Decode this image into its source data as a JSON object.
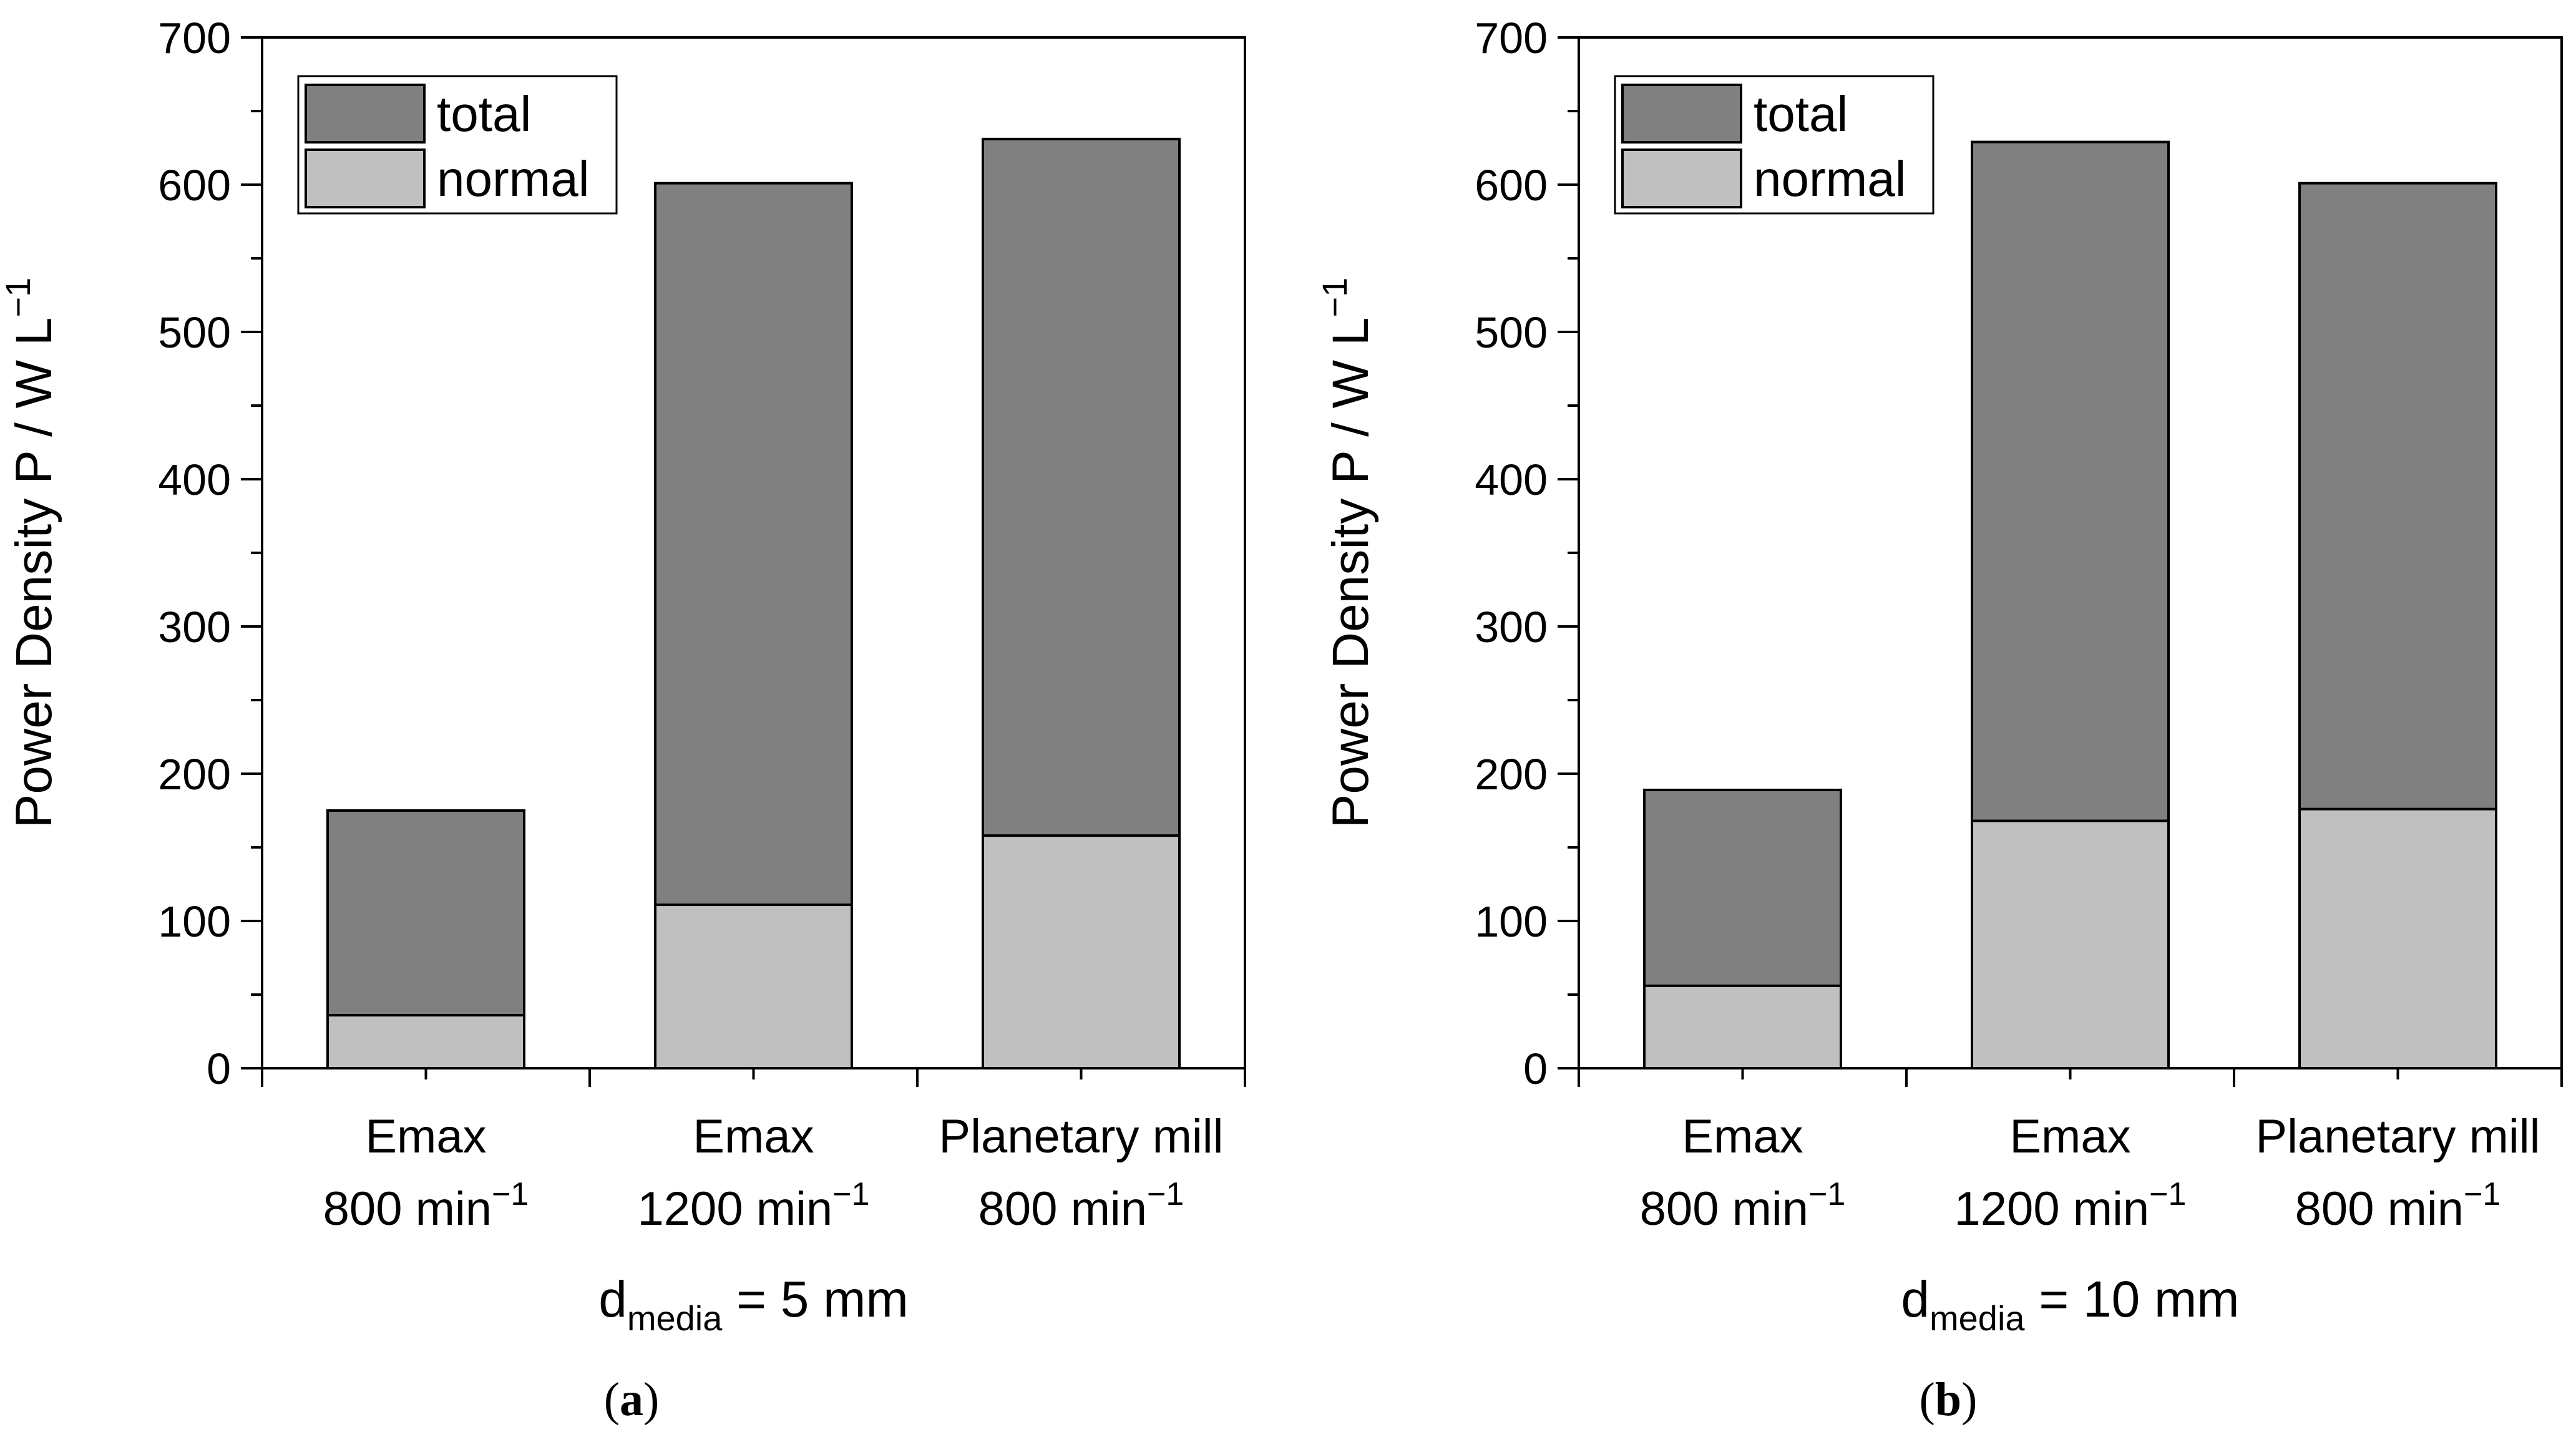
{
  "chart_data": [
    {
      "type": "bar",
      "stacked": "overlay",
      "panel_label": "a",
      "categories": [
        {
          "line1": "Emax",
          "line2_num": "800",
          "line2_unit": "min",
          "sup": "−1"
        },
        {
          "line1": "Emax",
          "line2_num": "1200",
          "line2_unit": "min",
          "sup": "−1"
        },
        {
          "line1": "Planetary mill",
          "line2_num": "800",
          "line2_unit": "min",
          "sup": "−1"
        }
      ],
      "series": [
        {
          "name": "total",
          "color": "#808080",
          "values": [
            175,
            601,
            631
          ]
        },
        {
          "name": "normal",
          "color": "#c0c0c0",
          "values": [
            36,
            111,
            158
          ]
        }
      ],
      "ylabel": {
        "text": "Power Density P / W L",
        "sup": "−1"
      },
      "xlabel": {
        "pre": "d",
        "sub": "media",
        "post": " = 5 mm"
      },
      "ylim": [
        0,
        700
      ],
      "yticks": [
        0,
        100,
        200,
        300,
        400,
        500,
        600,
        700
      ],
      "legend_position": "top-left"
    },
    {
      "type": "bar",
      "stacked": "overlay",
      "panel_label": "b",
      "categories": [
        {
          "line1": "Emax",
          "line2_num": "800",
          "line2_unit": "min",
          "sup": "−1"
        },
        {
          "line1": "Emax",
          "line2_num": "1200",
          "line2_unit": "min",
          "sup": "−1"
        },
        {
          "line1": "Planetary mill",
          "line2_num": "800",
          "line2_unit": "min",
          "sup": "−1"
        }
      ],
      "series": [
        {
          "name": "total",
          "color": "#808080",
          "values": [
            189,
            629,
            601
          ]
        },
        {
          "name": "normal",
          "color": "#c0c0c0",
          "values": [
            56,
            168,
            176
          ]
        }
      ],
      "ylabel": {
        "text": "Power Density P / W L",
        "sup": "−1"
      },
      "xlabel": {
        "pre": "d",
        "sub": "media",
        "post": " = 10 mm"
      },
      "ylim": [
        0,
        700
      ],
      "yticks": [
        0,
        100,
        200,
        300,
        400,
        500,
        600,
        700
      ],
      "legend_position": "top-left"
    }
  ]
}
